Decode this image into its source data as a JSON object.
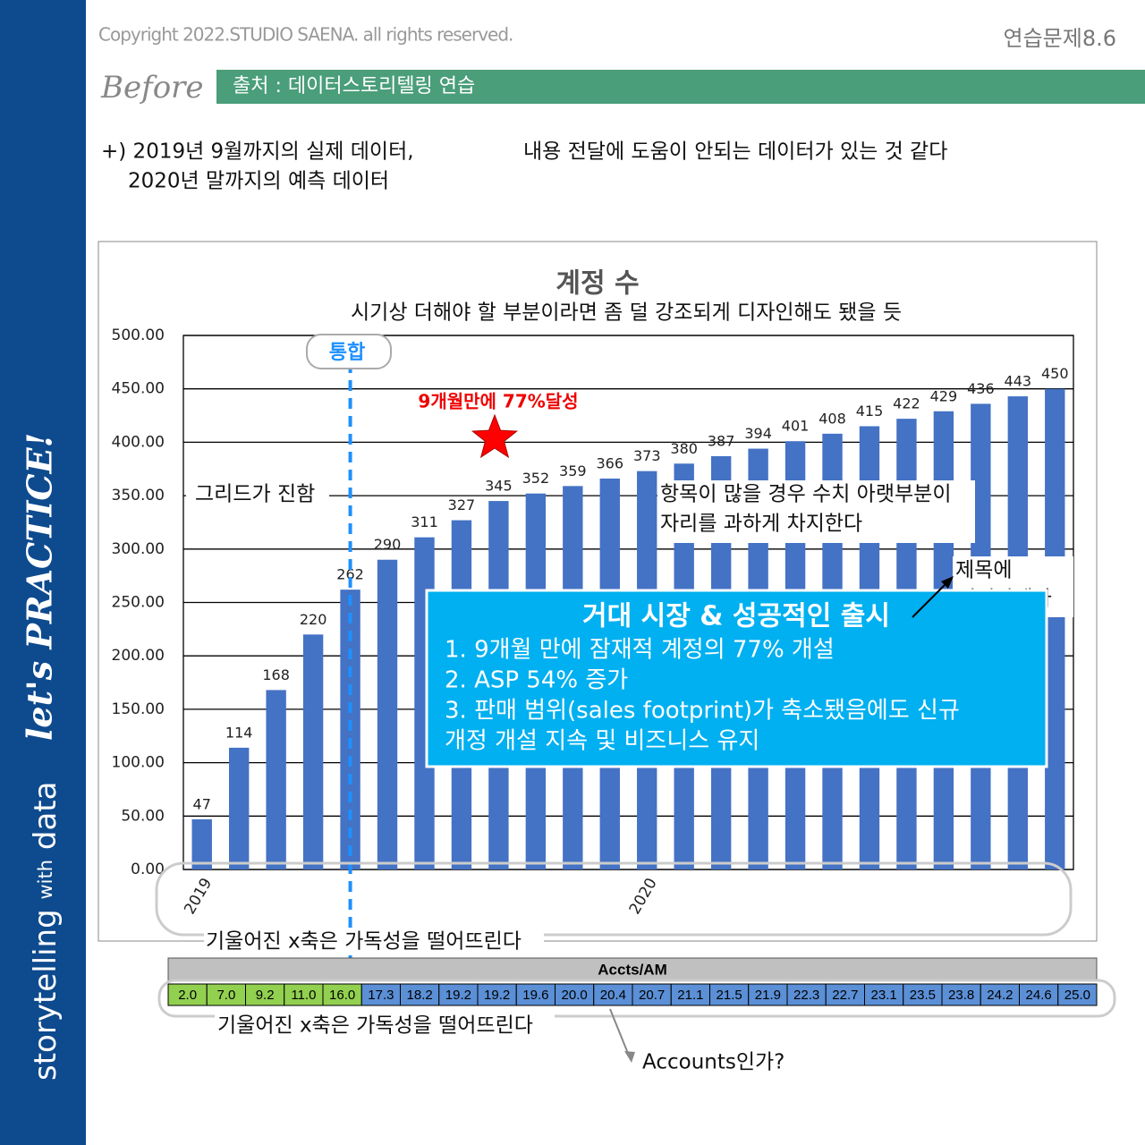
{
  "header": {
    "copyright": "Copyright 2022.STUDIO SAENA. all rights reserved.",
    "page_id": "연습문제8.6",
    "tag": "Before",
    "source": "출처 : 데이터스토리텔링 연습"
  },
  "sidebar": {
    "brand": [
      "storytelling",
      "with",
      "data"
    ],
    "slogan": "let's PRACTICE!"
  },
  "notes": {
    "data_range": [
      "+) 2019년 9월까지의 실제 데이터,",
      "2020년 말까지의 예측 데이터"
    ],
    "critique": "내용 전달에 도움이 안되는 데이터가 있는 것 같다"
  },
  "chart_data": {
    "type": "bar",
    "title": "계정 수",
    "categories": [
      "2019",
      null,
      null,
      null,
      null,
      null,
      null,
      null,
      null,
      null,
      null,
      null,
      "2020",
      null,
      null,
      null,
      null,
      null,
      null,
      null,
      null,
      null,
      null,
      null
    ],
    "values": [
      47,
      114,
      168,
      220,
      262,
      290,
      311,
      327,
      345,
      352,
      359,
      366,
      373,
      380,
      387,
      394,
      401,
      408,
      415,
      422,
      429,
      436,
      443,
      450
    ],
    "color": "#4472c4",
    "ylim": [
      0,
      500
    ],
    "yticks": [
      {
        "value": 0,
        "label": "0.00"
      },
      {
        "value": 50,
        "label": "50.00"
      },
      {
        "value": 100,
        "label": "100.00"
      },
      {
        "value": 150,
        "label": "150.00"
      },
      {
        "value": 200,
        "label": "200.00"
      },
      {
        "value": 250,
        "label": "250.00"
      },
      {
        "value": 300,
        "label": "300.00"
      },
      {
        "value": 350,
        "label": "350.00"
      },
      {
        "value": 400,
        "label": "400.00"
      },
      {
        "value": 450,
        "label": "450.00"
      },
      {
        "value": 500,
        "label": "500.00"
      }
    ],
    "grid": true,
    "annotations": {
      "merge": "통합",
      "milestone": "9개월만에 77%달성"
    }
  },
  "callout": {
    "title": "거대 시장 & 성공적인 출시",
    "items": [
      "1. 9개월 만에 잠재적 계정의 77% 개설",
      "2. ASP 54% 증가",
      "3. 판매 범위(sales footprint)가 축소됐음에도 신규",
      "개정 개설 지속 및 비즈니스 유지"
    ]
  },
  "table": {
    "header": "Accts/AM",
    "cells": [
      "2.0",
      "7.0",
      "9.2",
      "11.0",
      "16.0",
      "17.3",
      "18.2",
      "19.2",
      "19.2",
      "19.6",
      "20.0",
      "20.4",
      "20.7",
      "21.1",
      "21.5",
      "21.9",
      "22.3",
      "22.7",
      "23.1",
      "23.5",
      "23.8",
      "24.2",
      "24.6",
      "25.0"
    ],
    "colors": [
      "#92d050",
      "#92d050",
      "#92d050",
      "#92d050",
      "#92d050",
      "#5b8fd6",
      "#5b8fd6",
      "#5b8fd6",
      "#5b8fd6",
      "#5b8fd6",
      "#5b8fd6",
      "#5b8fd6",
      "#5b8fd6",
      "#5b8fd6",
      "#5b8fd6",
      "#5b8fd6",
      "#5b8fd6",
      "#5b8fd6",
      "#5b8fd6",
      "#5b8fd6",
      "#5b8fd6",
      "#5b8fd6",
      "#5b8fd6",
      "#5b8fd6"
    ]
  },
  "comments": {
    "title_note": "시기상 더해야 할 부분이라면 좀 덜 강조되게 디자인해도 됐을 듯",
    "grid": "그리드가 진함",
    "labels": [
      "항목이 많을 경우 수치 아랫부분이",
      "자리를 과하게 차지한다"
    ],
    "title_move": [
      "제목에",
      "있어야겠다"
    ],
    "x_axis": "기울어진 x축은 가독성을 떨어뜨린다",
    "x_axis_table": "기울어진 x축은 가독성을 떨어뜨린다",
    "accounts": "Accounts인가?"
  }
}
